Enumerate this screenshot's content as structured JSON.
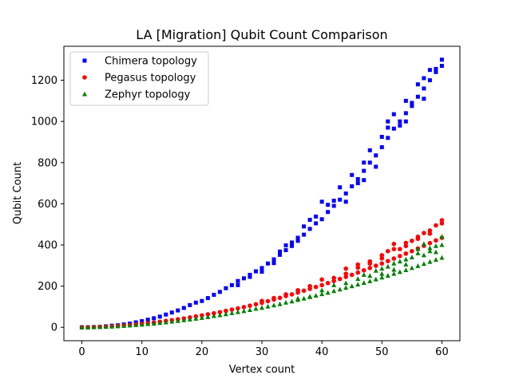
{
  "chart_data": {
    "type": "scatter",
    "title": "LA [Migration] Qubit Count Comparison",
    "xlabel": "Vertex count",
    "ylabel": "Qubit Count",
    "xlim": [
      -3,
      63
    ],
    "ylim": [
      -65,
      1365
    ],
    "xticks": [
      0,
      10,
      20,
      30,
      40,
      50,
      60
    ],
    "yticks": [
      0,
      200,
      400,
      600,
      800,
      1000,
      1200
    ],
    "grid": false,
    "legend_position": "top-left",
    "series": [
      {
        "name": "Chimera topology",
        "color": "#0000ff",
        "marker": "square",
        "points": [
          [
            0,
            0
          ],
          [
            1,
            0
          ],
          [
            2,
            1
          ],
          [
            3,
            2
          ],
          [
            4,
            5
          ],
          [
            5,
            8
          ],
          [
            6,
            10
          ],
          [
            7,
            14
          ],
          [
            8,
            18
          ],
          [
            9,
            24
          ],
          [
            10,
            30
          ],
          [
            11,
            37
          ],
          [
            12,
            44
          ],
          [
            13,
            52
          ],
          [
            14,
            62
          ],
          [
            15,
            72
          ],
          [
            16,
            82
          ],
          [
            17,
            94
          ],
          [
            18,
            108
          ],
          [
            19,
            120
          ],
          [
            20,
            128
          ],
          [
            21,
            142
          ],
          [
            22,
            158
          ],
          [
            23,
            172
          ],
          [
            24,
            190
          ],
          [
            25,
            205
          ],
          [
            26,
            225
          ],
          [
            27,
            238
          ],
          [
            28,
            255
          ],
          [
            29,
            272
          ],
          [
            30,
            288
          ],
          [
            31,
            310
          ],
          [
            32,
            330
          ],
          [
            33,
            352
          ],
          [
            34,
            375
          ],
          [
            35,
            395
          ],
          [
            36,
            420
          ],
          [
            37,
            450
          ],
          [
            38,
            478
          ],
          [
            39,
            505
          ],
          [
            40,
            525
          ],
          [
            41,
            560
          ],
          [
            42,
            590
          ],
          [
            43,
            620
          ],
          [
            44,
            650
          ],
          [
            45,
            685
          ],
          [
            46,
            720
          ],
          [
            47,
            760
          ],
          [
            48,
            800
          ],
          [
            49,
            835
          ],
          [
            50,
            875
          ],
          [
            51,
            920
          ],
          [
            52,
            965
          ],
          [
            53,
            1000
          ],
          [
            54,
            1040
          ],
          [
            55,
            1075
          ],
          [
            56,
            1120
          ],
          [
            57,
            1160
          ],
          [
            58,
            1200
          ],
          [
            59,
            1240
          ],
          [
            60,
            1270
          ],
          [
            26,
            205
          ],
          [
            28,
            245
          ],
          [
            30,
            270
          ],
          [
            32,
            312
          ],
          [
            33,
            368
          ],
          [
            34,
            398
          ],
          [
            35,
            412
          ],
          [
            36,
            435
          ],
          [
            37,
            490
          ],
          [
            38,
            522
          ],
          [
            39,
            538
          ],
          [
            40,
            610
          ],
          [
            41,
            595
          ],
          [
            42,
            615
          ],
          [
            43,
            680
          ],
          [
            44,
            610
          ],
          [
            45,
            740
          ],
          [
            46,
            700
          ],
          [
            47,
            715
          ],
          [
            47,
            800
          ],
          [
            48,
            860
          ],
          [
            49,
            780
          ],
          [
            50,
            925
          ],
          [
            51,
            970
          ],
          [
            51,
            1000
          ],
          [
            52,
            1035
          ],
          [
            53,
            980
          ],
          [
            54,
            1100
          ],
          [
            54,
            1000
          ],
          [
            55,
            1090
          ],
          [
            56,
            1180
          ],
          [
            57,
            1110
          ],
          [
            57,
            1210
          ],
          [
            58,
            1250
          ],
          [
            59,
            1255
          ],
          [
            60,
            1300
          ]
        ]
      },
      {
        "name": "Pegasus topology",
        "color": "#ff0000",
        "marker": "circle",
        "points": [
          [
            0,
            0
          ],
          [
            1,
            0
          ],
          [
            2,
            1
          ],
          [
            3,
            2
          ],
          [
            4,
            3
          ],
          [
            5,
            5
          ],
          [
            6,
            7
          ],
          [
            7,
            9
          ],
          [
            8,
            11
          ],
          [
            9,
            14
          ],
          [
            10,
            17
          ],
          [
            11,
            20
          ],
          [
            12,
            23
          ],
          [
            13,
            27
          ],
          [
            14,
            31
          ],
          [
            15,
            35
          ],
          [
            16,
            39
          ],
          [
            17,
            43
          ],
          [
            18,
            48
          ],
          [
            19,
            53
          ],
          [
            20,
            58
          ],
          [
            21,
            63
          ],
          [
            22,
            68
          ],
          [
            23,
            74
          ],
          [
            24,
            80
          ],
          [
            25,
            86
          ],
          [
            26,
            92
          ],
          [
            27,
            98
          ],
          [
            28,
            105
          ],
          [
            29,
            112
          ],
          [
            30,
            119
          ],
          [
            31,
            127
          ],
          [
            32,
            135
          ],
          [
            33,
            143
          ],
          [
            34,
            152
          ],
          [
            35,
            160
          ],
          [
            36,
            169
          ],
          [
            37,
            178
          ],
          [
            38,
            187
          ],
          [
            39,
            196
          ],
          [
            40,
            205
          ],
          [
            41,
            215
          ],
          [
            42,
            225
          ],
          [
            43,
            235
          ],
          [
            44,
            245
          ],
          [
            45,
            255
          ],
          [
            46,
            266
          ],
          [
            47,
            277
          ],
          [
            48,
            288
          ],
          [
            49,
            299
          ],
          [
            50,
            310
          ],
          [
            51,
            322
          ],
          [
            52,
            334
          ],
          [
            53,
            346
          ],
          [
            54,
            358
          ],
          [
            55,
            370
          ],
          [
            56,
            383
          ],
          [
            57,
            396
          ],
          [
            58,
            409
          ],
          [
            59,
            422
          ],
          [
            60,
            435
          ],
          [
            30,
            128
          ],
          [
            32,
            142
          ],
          [
            34,
            160
          ],
          [
            36,
            180
          ],
          [
            38,
            200
          ],
          [
            40,
            232
          ],
          [
            42,
            240
          ],
          [
            44,
            285
          ],
          [
            46,
            305
          ],
          [
            48,
            320
          ],
          [
            50,
            350
          ],
          [
            51,
            370
          ],
          [
            52,
            405
          ],
          [
            53,
            380
          ],
          [
            54,
            395
          ],
          [
            55,
            420
          ],
          [
            56,
            440
          ],
          [
            57,
            458
          ],
          [
            58,
            470
          ],
          [
            59,
            495
          ],
          [
            60,
            520
          ],
          [
            60,
            505
          ],
          [
            58,
            455
          ],
          [
            56,
            430
          ],
          [
            54,
            410
          ],
          [
            52,
            380
          ],
          [
            50,
            335
          ],
          [
            48,
            310
          ],
          [
            46,
            290
          ],
          [
            44,
            260
          ]
        ]
      },
      {
        "name": "Zephyr topology",
        "color": "#008000",
        "marker": "triangle",
        "points": [
          [
            0,
            0
          ],
          [
            1,
            0
          ],
          [
            2,
            1
          ],
          [
            3,
            2
          ],
          [
            4,
            3
          ],
          [
            5,
            4
          ],
          [
            6,
            5
          ],
          [
            7,
            7
          ],
          [
            8,
            9
          ],
          [
            9,
            11
          ],
          [
            10,
            13
          ],
          [
            11,
            16
          ],
          [
            12,
            18
          ],
          [
            13,
            21
          ],
          [
            14,
            24
          ],
          [
            15,
            28
          ],
          [
            16,
            31
          ],
          [
            17,
            35
          ],
          [
            18,
            38
          ],
          [
            19,
            42
          ],
          [
            20,
            46
          ],
          [
            21,
            50
          ],
          [
            22,
            55
          ],
          [
            23,
            59
          ],
          [
            24,
            64
          ],
          [
            25,
            69
          ],
          [
            26,
            74
          ],
          [
            27,
            79
          ],
          [
            28,
            84
          ],
          [
            29,
            90
          ],
          [
            30,
            95
          ],
          [
            31,
            101
          ],
          [
            32,
            107
          ],
          [
            33,
            113
          ],
          [
            34,
            120
          ],
          [
            35,
            126
          ],
          [
            36,
            133
          ],
          [
            37,
            140
          ],
          [
            38,
            147
          ],
          [
            39,
            154
          ],
          [
            40,
            161
          ],
          [
            41,
            168
          ],
          [
            42,
            176
          ],
          [
            43,
            184
          ],
          [
            44,
            192
          ],
          [
            45,
            200
          ],
          [
            46,
            208
          ],
          [
            47,
            216
          ],
          [
            48,
            224
          ],
          [
            49,
            233
          ],
          [
            50,
            242
          ],
          [
            51,
            251
          ],
          [
            52,
            260
          ],
          [
            53,
            269
          ],
          [
            54,
            278
          ],
          [
            55,
            288
          ],
          [
            56,
            298
          ],
          [
            57,
            308
          ],
          [
            58,
            318
          ],
          [
            59,
            328
          ],
          [
            60,
            338
          ],
          [
            36,
            140
          ],
          [
            38,
            150
          ],
          [
            40,
            180
          ],
          [
            42,
            205
          ],
          [
            44,
            215
          ],
          [
            46,
            235
          ],
          [
            47,
            255
          ],
          [
            48,
            250
          ],
          [
            49,
            275
          ],
          [
            50,
            285
          ],
          [
            51,
            295
          ],
          [
            52,
            310
          ],
          [
            53,
            320
          ],
          [
            54,
            305
          ],
          [
            55,
            340
          ],
          [
            56,
            360
          ],
          [
            57,
            350
          ],
          [
            58,
            385
          ],
          [
            59,
            395
          ],
          [
            60,
            440
          ],
          [
            60,
            400
          ],
          [
            59,
            365
          ],
          [
            58,
            370
          ],
          [
            57,
            405
          ],
          [
            56,
            380
          ],
          [
            54,
            330
          ],
          [
            52,
            280
          ],
          [
            50,
            260
          ]
        ]
      }
    ]
  }
}
